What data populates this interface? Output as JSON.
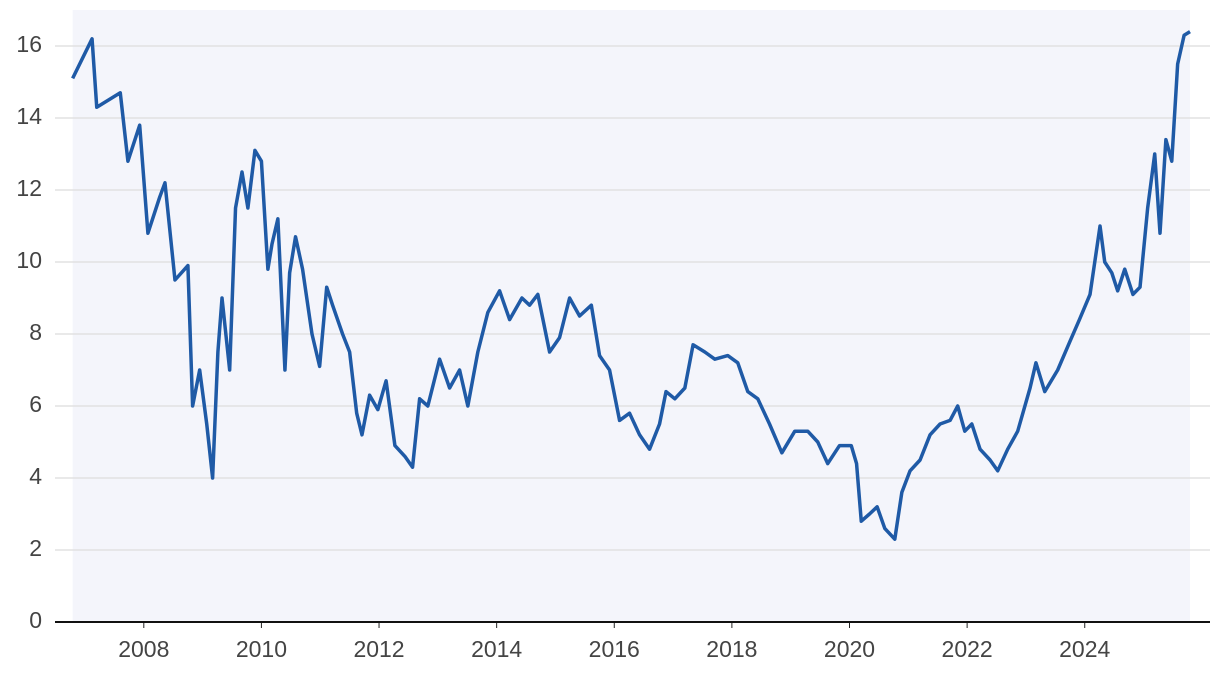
{
  "chart_data": {
    "type": "line",
    "x": [
      2006.79,
      2007.12,
      2007.2,
      2007.6,
      2007.73,
      2007.93,
      2008.07,
      2008.27,
      2008.36,
      2008.53,
      2008.75,
      2008.83,
      2008.95,
      2009.07,
      2009.17,
      2009.26,
      2009.33,
      2009.46,
      2009.56,
      2009.67,
      2009.77,
      2009.89,
      2010.0,
      2010.11,
      2010.18,
      2010.28,
      2010.4,
      2010.48,
      2010.58,
      2010.7,
      2010.86,
      2010.99,
      2011.11,
      2011.21,
      2011.38,
      2011.5,
      2011.62,
      2011.71,
      2011.84,
      2011.98,
      2012.12,
      2012.27,
      2012.44,
      2012.57,
      2012.69,
      2012.83,
      2013.03,
      2013.2,
      2013.37,
      2013.51,
      2013.68,
      2013.85,
      2014.05,
      2014.22,
      2014.43,
      2014.56,
      2014.7,
      2014.9,
      2015.07,
      2015.24,
      2015.41,
      2015.61,
      2015.75,
      2015.92,
      2016.09,
      2016.26,
      2016.43,
      2016.6,
      2016.77,
      2016.88,
      2017.03,
      2017.2,
      2017.34,
      2017.54,
      2017.71,
      2017.93,
      2018.1,
      2018.27,
      2018.44,
      2018.64,
      2018.85,
      2019.07,
      2019.29,
      2019.46,
      2019.63,
      2019.83,
      2020.03,
      2020.12,
      2020.2,
      2020.34,
      2020.47,
      2020.6,
      2020.77,
      2020.89,
      2021.03,
      2021.2,
      2021.37,
      2021.54,
      2021.71,
      2021.84,
      2021.96,
      2022.08,
      2022.22,
      2022.39,
      2022.52,
      2022.69,
      2022.86,
      2023.07,
      2023.17,
      2023.32,
      2023.54,
      2023.75,
      2023.91,
      2024.09,
      2024.26,
      2024.34,
      2024.46,
      2024.56,
      2024.68,
      2024.82,
      2024.94,
      2025.07,
      2025.19,
      2025.28,
      2025.38,
      2025.48,
      2025.58,
      2025.69,
      2025.79
    ],
    "series": [
      {
        "color": "#1f5aa6",
        "values": [
          15.1,
          16.2,
          14.3,
          14.7,
          12.8,
          13.8,
          10.8,
          11.8,
          12.2,
          9.5,
          9.9,
          6.0,
          7.0,
          5.5,
          4.0,
          7.5,
          9.0,
          7.0,
          11.5,
          12.5,
          11.5,
          13.1,
          12.8,
          9.8,
          10.5,
          11.2,
          7.0,
          9.7,
          10.7,
          9.8,
          8.0,
          7.1,
          9.3,
          8.8,
          8.0,
          7.5,
          5.8,
          5.2,
          6.3,
          5.9,
          6.7,
          4.9,
          4.6,
          4.3,
          6.2,
          6.0,
          7.3,
          6.5,
          7.0,
          6.0,
          7.5,
          8.6,
          9.2,
          8.4,
          9.0,
          8.8,
          9.1,
          7.5,
          7.9,
          9.0,
          8.5,
          8.8,
          7.4,
          7.0,
          5.6,
          5.8,
          5.2,
          4.8,
          5.5,
          6.4,
          6.2,
          6.5,
          7.7,
          7.5,
          7.3,
          7.4,
          7.2,
          6.4,
          6.2,
          5.5,
          4.7,
          5.3,
          5.3,
          5.0,
          4.4,
          4.9,
          4.9,
          4.4,
          2.8,
          3.0,
          3.2,
          2.6,
          2.3,
          3.6,
          4.2,
          4.5,
          5.2,
          5.5,
          5.6,
          6.0,
          5.3,
          5.5,
          4.8,
          4.5,
          4.2,
          4.8,
          5.3,
          6.5,
          7.2,
          6.4,
          7.0,
          7.8,
          8.4,
          9.1,
          11.0,
          10.0,
          9.7,
          9.2,
          9.8,
          9.1,
          9.3,
          11.5,
          13.0,
          10.8,
          13.4,
          12.8,
          15.5,
          16.3,
          16.4
        ]
      }
    ],
    "xlim": [
      2006.49,
      2026.13
    ],
    "xticks": [
      2008,
      2010,
      2012,
      2014,
      2016,
      2018,
      2020,
      2022,
      2024
    ],
    "ylim": [
      0,
      17
    ],
    "yticks": [
      0,
      2,
      4,
      6,
      8,
      10,
      12,
      14,
      16
    ],
    "grid": true,
    "fill": "#f4f5fb"
  }
}
